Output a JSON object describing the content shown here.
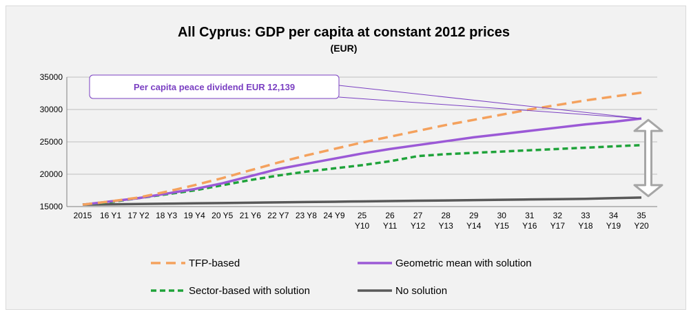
{
  "chart_data": {
    "type": "line",
    "title": "All Cyprus: GDP per capita at constant 2012 prices",
    "subtitle": "(EUR)",
    "xlabel": "",
    "ylabel": "",
    "ylim": [
      15000,
      35000
    ],
    "yticks": [
      "15000",
      "20000",
      "25000",
      "30000",
      "35000"
    ],
    "categories": [
      [
        "2015"
      ],
      [
        "16 Y1"
      ],
      [
        "17 Y2"
      ],
      [
        "18 Y3"
      ],
      [
        "19 Y4"
      ],
      [
        "20 Y5"
      ],
      [
        "21 Y6"
      ],
      [
        "22 Y7"
      ],
      [
        "23 Y8"
      ],
      [
        "24 Y9"
      ],
      [
        "25",
        "Y10"
      ],
      [
        "26",
        "Y11"
      ],
      [
        "27",
        "Y12"
      ],
      [
        "28",
        "Y13"
      ],
      [
        "29",
        "Y14"
      ],
      [
        "30",
        "Y15"
      ],
      [
        "31",
        "Y16"
      ],
      [
        "32",
        "Y17"
      ],
      [
        "33",
        "Y18"
      ],
      [
        "34",
        "Y19"
      ],
      [
        "35",
        "Y20"
      ]
    ],
    "grid": true,
    "legend_position": "bottom",
    "series": [
      {
        "name": "TFP-based",
        "color": "#f4a15d",
        "style": "dashed",
        "values": [
          15300,
          15800,
          16400,
          17300,
          18300,
          19400,
          20600,
          21800,
          22900,
          23900,
          24900,
          25800,
          26700,
          27600,
          28400,
          29200,
          30000,
          30700,
          31400,
          32000,
          32600
        ]
      },
      {
        "name": "Geometric mean with solution",
        "color": "#9b59d6",
        "style": "solid",
        "values": [
          15300,
          15800,
          16300,
          17000,
          17700,
          18600,
          19700,
          20800,
          21600,
          22400,
          23200,
          23900,
          24500,
          25100,
          25700,
          26200,
          26700,
          27200,
          27700,
          28100,
          28600
        ]
      },
      {
        "name": "Sector-based with solution",
        "color": "#1fa33a",
        "style": "dashed",
        "values": [
          15300,
          15700,
          16300,
          16900,
          17500,
          18300,
          19100,
          19800,
          20400,
          20900,
          21400,
          22000,
          22800,
          23100,
          23300,
          23500,
          23700,
          23900,
          24100,
          24300,
          24500
        ]
      },
      {
        "name": "No solution",
        "color": "#595959",
        "style": "solid",
        "values": [
          15300,
          15350,
          15400,
          15450,
          15500,
          15550,
          15600,
          15650,
          15700,
          15750,
          15800,
          15850,
          15900,
          15950,
          16000,
          16050,
          16100,
          16150,
          16200,
          16300,
          16400
        ]
      }
    ],
    "annotation": {
      "text": "Per capita peace dividend EUR 12,139",
      "color": "#7a3fc2"
    },
    "arrow_color": "#a6a6a6"
  }
}
